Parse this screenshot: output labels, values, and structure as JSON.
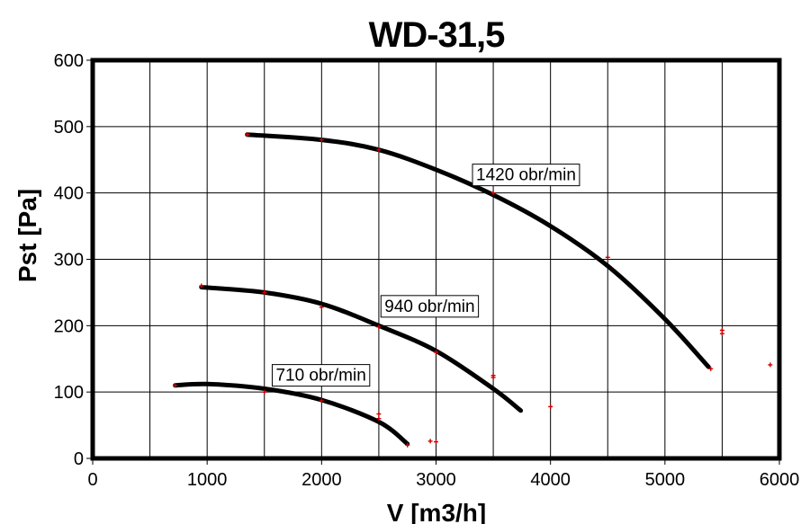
{
  "chart_data": {
    "type": "line",
    "title": "WD-31,5",
    "xlabel": "V [m3/h]",
    "ylabel": "Pst [Pa]",
    "xlim": [
      0,
      6000
    ],
    "ylim": [
      0,
      600
    ],
    "xticks": [
      "0",
      "1000",
      "2000",
      "3000",
      "4000",
      "5000",
      "6000"
    ],
    "yticks": [
      "0",
      "100",
      "200",
      "300",
      "400",
      "500",
      "600"
    ],
    "grid": true,
    "legend": "inline labels",
    "series": [
      {
        "name": "1420 obr/min",
        "color": "#000000",
        "x": [
          1350,
          2000,
          2500,
          3000,
          3500,
          4000,
          4500,
          5000,
          5380
        ],
        "y": [
          488,
          480,
          465,
          435,
          397,
          350,
          290,
          210,
          138
        ]
      },
      {
        "name": "940 obr/min",
        "color": "#000000",
        "x": [
          950,
          1500,
          2000,
          2500,
          3000,
          3500,
          3740
        ],
        "y": [
          258,
          250,
          233,
          200,
          162,
          105,
          72
        ]
      },
      {
        "name": "710 obr/min",
        "color": "#000000",
        "x": [
          720,
          1000,
          1500,
          2000,
          2500,
          2750
        ],
        "y": [
          110,
          112,
          105,
          88,
          55,
          22
        ]
      }
    ],
    "measured_points": {
      "color": "#cc0000",
      "points": [
        [
          1350,
          488
        ],
        [
          2000,
          480
        ],
        [
          2500,
          465
        ],
        [
          3500,
          400
        ],
        [
          4500,
          303
        ],
        [
          5400,
          135
        ],
        [
          5500,
          188
        ],
        [
          5500,
          193
        ],
        [
          5920,
          141
        ],
        [
          950,
          260
        ],
        [
          1500,
          250
        ],
        [
          2000,
          228
        ],
        [
          2500,
          198
        ],
        [
          3000,
          160
        ],
        [
          3500,
          122
        ],
        [
          3500,
          125
        ],
        [
          4000,
          78
        ],
        [
          720,
          110
        ],
        [
          1500,
          100
        ],
        [
          2000,
          87
        ],
        [
          2500,
          67
        ],
        [
          2500,
          60
        ],
        [
          2750,
          20
        ],
        [
          2950,
          26
        ],
        [
          3000,
          25
        ]
      ]
    }
  }
}
